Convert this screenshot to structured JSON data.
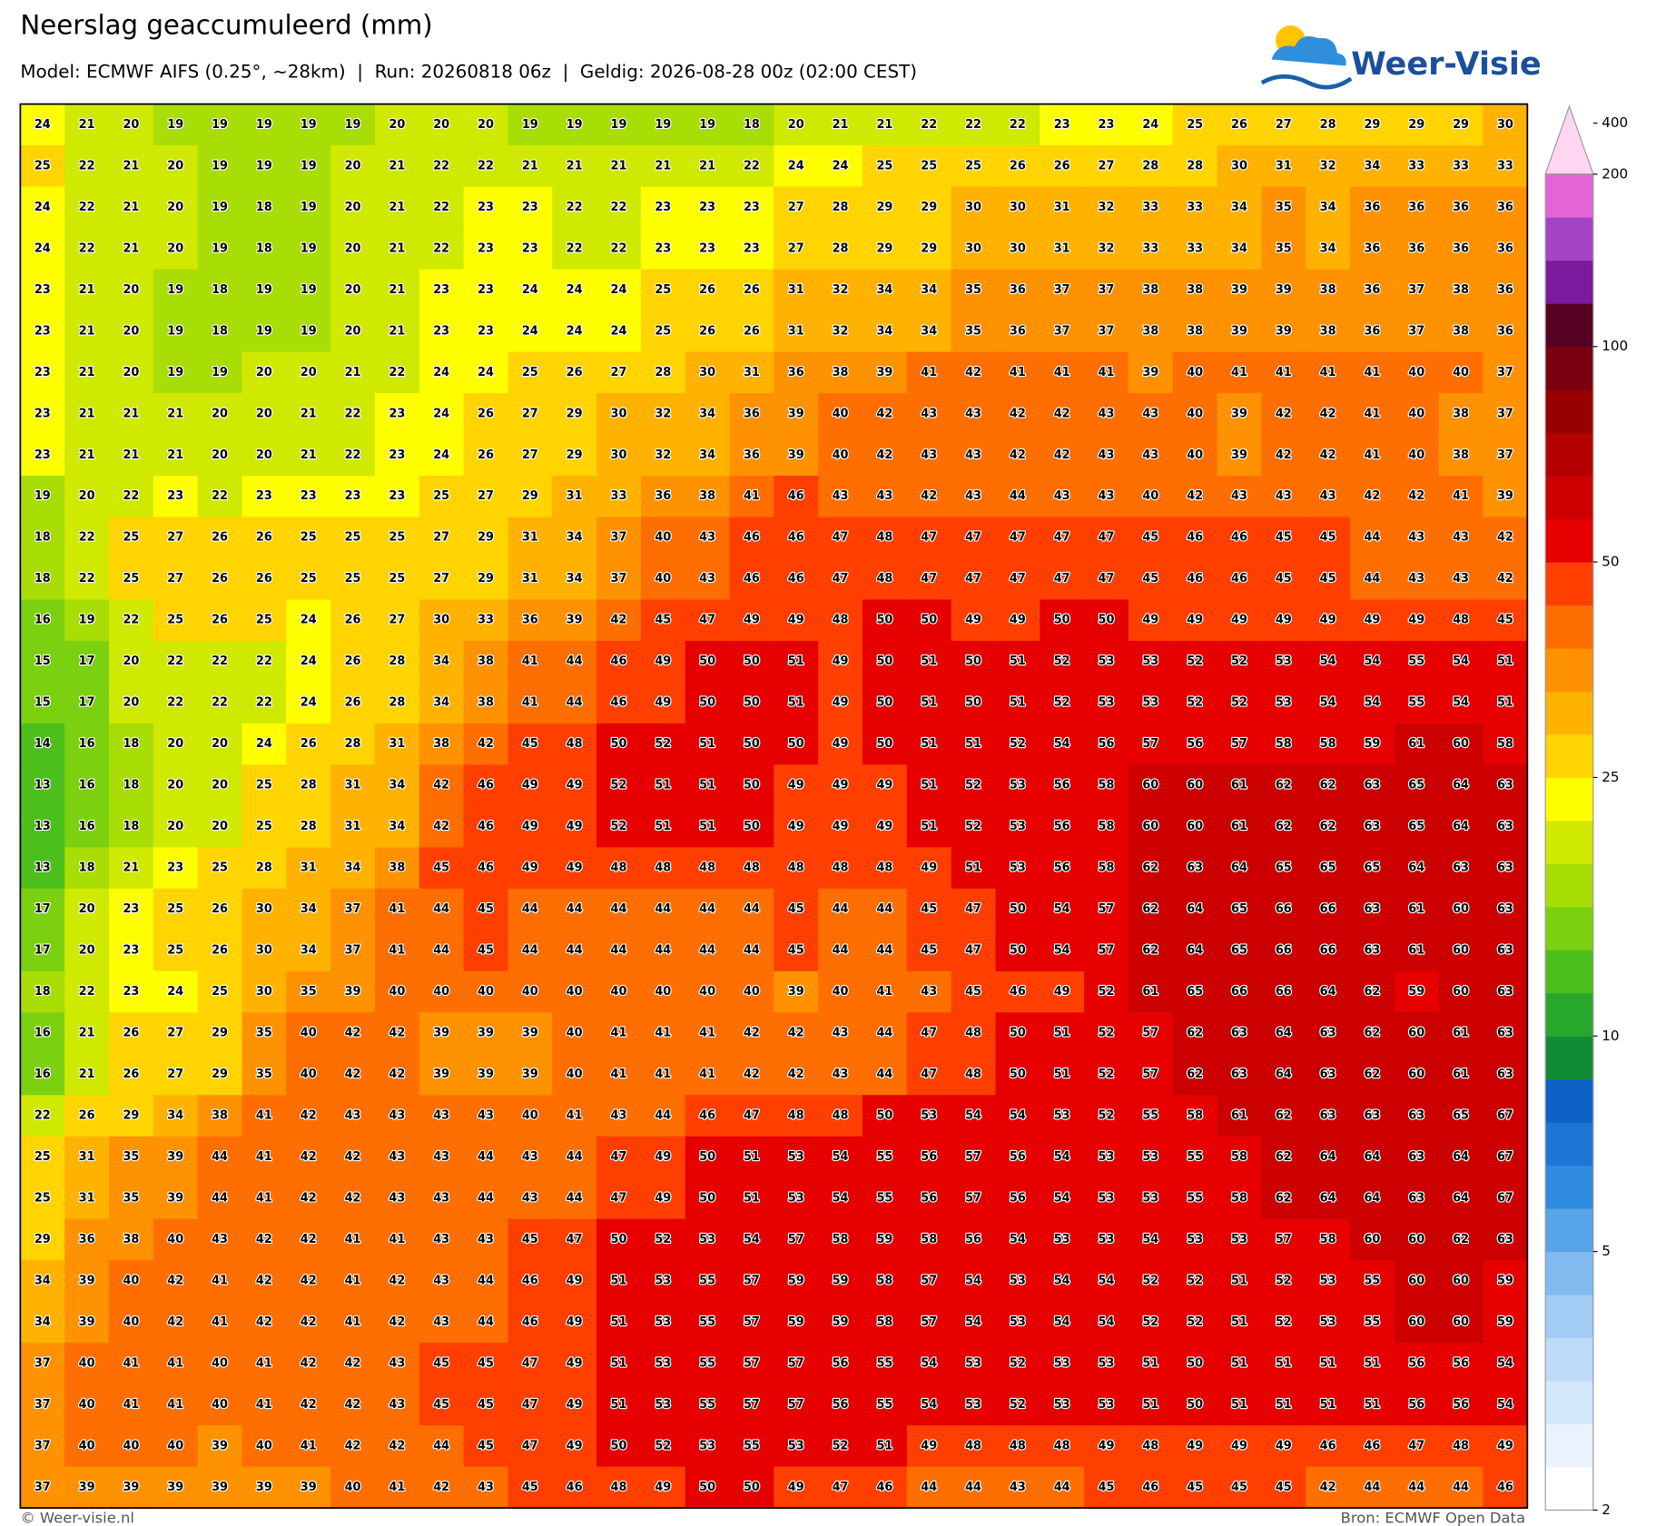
{
  "header": {
    "title": "Neerslag geaccumuleerd (mm)",
    "subtitle": "Model: ECMWF AIFS (0.25°, ~28km)  |  Run: 20260818 06z  |  Geldig: 2026-08-28 00z (02:00 CEST)"
  },
  "logo": "Weer-Visie",
  "map": {
    "values": [
      [
        24,
        21,
        20,
        19,
        19,
        19,
        19,
        19,
        20,
        20,
        20,
        19,
        19,
        19,
        19,
        19,
        18,
        20,
        21,
        21,
        22,
        22,
        22,
        23,
        23,
        24,
        25,
        26,
        27,
        28,
        29,
        29,
        29,
        30
      ],
      [
        25,
        22,
        21,
        20,
        19,
        19,
        19,
        20,
        21,
        22,
        22,
        21,
        21,
        21,
        21,
        21,
        22,
        24,
        24,
        25,
        25,
        25,
        26,
        26,
        27,
        28,
        28,
        30,
        31,
        32,
        34,
        33,
        33,
        33
      ],
      [
        24,
        22,
        21,
        20,
        19,
        18,
        19,
        20,
        21,
        22,
        23,
        23,
        22,
        22,
        23,
        23,
        23,
        27,
        28,
        29,
        29,
        30,
        30,
        31,
        32,
        33,
        33,
        34,
        35,
        34,
        36,
        36,
        36,
        36
      ],
      [
        24,
        22,
        21,
        20,
        19,
        18,
        19,
        20,
        21,
        22,
        23,
        23,
        22,
        22,
        23,
        23,
        23,
        27,
        28,
        29,
        29,
        30,
        30,
        31,
        32,
        33,
        33,
        34,
        35,
        34,
        36,
        36,
        36,
        36
      ],
      [
        23,
        21,
        20,
        19,
        18,
        19,
        19,
        20,
        21,
        23,
        23,
        24,
        24,
        24,
        25,
        26,
        26,
        31,
        32,
        34,
        34,
        35,
        36,
        37,
        37,
        38,
        38,
        39,
        39,
        38,
        36,
        37,
        38,
        36
      ],
      [
        23,
        21,
        20,
        19,
        18,
        19,
        19,
        20,
        21,
        23,
        23,
        24,
        24,
        24,
        25,
        26,
        26,
        31,
        32,
        34,
        34,
        35,
        36,
        37,
        37,
        38,
        38,
        39,
        39,
        38,
        36,
        37,
        38,
        36
      ],
      [
        23,
        21,
        20,
        19,
        19,
        20,
        20,
        21,
        22,
        24,
        24,
        25,
        26,
        27,
        28,
        30,
        31,
        36,
        38,
        39,
        41,
        42,
        41,
        41,
        41,
        39,
        40,
        41,
        41,
        41,
        41,
        40,
        40,
        37
      ],
      [
        23,
        21,
        21,
        21,
        20,
        20,
        21,
        22,
        23,
        24,
        26,
        27,
        29,
        30,
        32,
        34,
        36,
        39,
        40,
        42,
        43,
        43,
        42,
        42,
        43,
        43,
        40,
        39,
        42,
        42,
        41,
        40,
        38,
        37
      ],
      [
        23,
        21,
        21,
        21,
        20,
        20,
        21,
        22,
        23,
        24,
        26,
        27,
        29,
        30,
        32,
        34,
        36,
        39,
        40,
        42,
        43,
        43,
        42,
        42,
        43,
        43,
        40,
        39,
        42,
        42,
        41,
        40,
        38,
        37
      ],
      [
        19,
        20,
        22,
        23,
        22,
        23,
        23,
        23,
        23,
        25,
        27,
        29,
        31,
        33,
        36,
        38,
        41,
        46,
        43,
        43,
        42,
        43,
        44,
        43,
        43,
        40,
        42,
        43,
        43,
        43,
        42,
        42,
        41,
        39
      ],
      [
        18,
        22,
        25,
        27,
        26,
        26,
        25,
        25,
        25,
        27,
        29,
        31,
        34,
        37,
        40,
        43,
        46,
        46,
        47,
        48,
        47,
        47,
        47,
        47,
        47,
        45,
        46,
        46,
        45,
        45,
        44,
        43,
        43,
        42
      ],
      [
        18,
        22,
        25,
        27,
        26,
        26,
        25,
        25,
        25,
        27,
        29,
        31,
        34,
        37,
        40,
        43,
        46,
        46,
        47,
        48,
        47,
        47,
        47,
        47,
        47,
        45,
        46,
        46,
        45,
        45,
        44,
        43,
        43,
        42
      ],
      [
        16,
        19,
        22,
        25,
        26,
        25,
        24,
        26,
        27,
        30,
        33,
        36,
        39,
        42,
        45,
        47,
        49,
        49,
        48,
        50,
        50,
        49,
        49,
        50,
        50,
        49,
        49,
        49,
        49,
        49,
        49,
        49,
        48,
        45
      ],
      [
        15,
        17,
        20,
        22,
        22,
        22,
        24,
        26,
        28,
        34,
        38,
        41,
        44,
        46,
        49,
        50,
        50,
        51,
        49,
        50,
        51,
        50,
        51,
        52,
        53,
        53,
        52,
        52,
        53,
        54,
        54,
        55,
        54,
        51
      ],
      [
        15,
        17,
        20,
        22,
        22,
        22,
        24,
        26,
        28,
        34,
        38,
        41,
        44,
        46,
        49,
        50,
        50,
        51,
        49,
        50,
        51,
        50,
        51,
        52,
        53,
        53,
        52,
        52,
        53,
        54,
        54,
        55,
        54,
        51
      ],
      [
        14,
        16,
        18,
        20,
        20,
        24,
        26,
        28,
        31,
        38,
        42,
        45,
        48,
        50,
        52,
        51,
        50,
        50,
        49,
        50,
        51,
        51,
        52,
        54,
        56,
        57,
        56,
        57,
        58,
        58,
        59,
        61,
        60,
        58
      ],
      [
        13,
        16,
        18,
        20,
        20,
        25,
        28,
        31,
        34,
        42,
        46,
        49,
        49,
        52,
        51,
        51,
        50,
        49,
        49,
        49,
        51,
        52,
        53,
        56,
        58,
        60,
        60,
        61,
        62,
        62,
        63,
        65,
        64,
        63
      ],
      [
        13,
        16,
        18,
        20,
        20,
        25,
        28,
        31,
        34,
        42,
        46,
        49,
        49,
        52,
        51,
        51,
        50,
        49,
        49,
        49,
        51,
        52,
        53,
        56,
        58,
        60,
        60,
        61,
        62,
        62,
        63,
        65,
        64,
        63
      ],
      [
        13,
        18,
        21,
        23,
        25,
        28,
        31,
        34,
        38,
        45,
        46,
        49,
        49,
        48,
        48,
        48,
        48,
        48,
        48,
        48,
        49,
        51,
        53,
        56,
        58,
        62,
        63,
        64,
        65,
        65,
        65,
        64,
        63,
        63
      ],
      [
        17,
        20,
        23,
        25,
        26,
        30,
        34,
        37,
        41,
        44,
        45,
        44,
        44,
        44,
        44,
        44,
        44,
        45,
        44,
        44,
        45,
        47,
        50,
        54,
        57,
        62,
        64,
        65,
        66,
        66,
        63,
        61,
        60,
        63
      ],
      [
        17,
        20,
        23,
        25,
        26,
        30,
        34,
        37,
        41,
        44,
        45,
        44,
        44,
        44,
        44,
        44,
        44,
        45,
        44,
        44,
        45,
        47,
        50,
        54,
        57,
        62,
        64,
        65,
        66,
        66,
        63,
        61,
        60,
        63
      ],
      [
        18,
        22,
        23,
        24,
        25,
        30,
        35,
        39,
        40,
        40,
        40,
        40,
        40,
        40,
        40,
        40,
        40,
        39,
        40,
        41,
        43,
        45,
        46,
        49,
        52,
        61,
        65,
        66,
        66,
        64,
        62,
        59,
        60,
        63
      ],
      [
        16,
        21,
        26,
        27,
        29,
        35,
        40,
        42,
        42,
        39,
        39,
        39,
        40,
        41,
        41,
        41,
        42,
        42,
        43,
        44,
        47,
        48,
        50,
        51,
        52,
        57,
        62,
        63,
        64,
        63,
        62,
        60,
        61,
        63
      ],
      [
        16,
        21,
        26,
        27,
        29,
        35,
        40,
        42,
        42,
        39,
        39,
        39,
        40,
        41,
        41,
        41,
        42,
        42,
        43,
        44,
        47,
        48,
        50,
        51,
        52,
        57,
        62,
        63,
        64,
        63,
        62,
        60,
        61,
        63
      ],
      [
        22,
        26,
        29,
        34,
        38,
        41,
        42,
        43,
        43,
        43,
        43,
        40,
        41,
        43,
        44,
        46,
        47,
        48,
        48,
        50,
        53,
        54,
        54,
        53,
        52,
        55,
        58,
        61,
        62,
        63,
        63,
        63,
        65,
        67
      ],
      [
        25,
        31,
        35,
        39,
        44,
        41,
        42,
        42,
        43,
        43,
        44,
        43,
        44,
        47,
        49,
        50,
        51,
        53,
        54,
        55,
        56,
        57,
        56,
        54,
        53,
        53,
        55,
        58,
        62,
        64,
        64,
        63,
        64,
        67
      ],
      [
        25,
        31,
        35,
        39,
        44,
        41,
        42,
        42,
        43,
        43,
        44,
        43,
        44,
        47,
        49,
        50,
        51,
        53,
        54,
        55,
        56,
        57,
        56,
        54,
        53,
        53,
        55,
        58,
        62,
        64,
        64,
        63,
        64,
        67
      ],
      [
        29,
        36,
        38,
        40,
        43,
        42,
        42,
        41,
        41,
        43,
        43,
        45,
        47,
        50,
        52,
        53,
        54,
        57,
        58,
        59,
        58,
        56,
        54,
        53,
        53,
        54,
        53,
        53,
        57,
        58,
        60,
        60,
        62,
        63
      ],
      [
        34,
        39,
        40,
        42,
        41,
        42,
        42,
        41,
        42,
        43,
        44,
        46,
        49,
        51,
        53,
        55,
        57,
        59,
        59,
        58,
        57,
        54,
        53,
        54,
        54,
        52,
        52,
        51,
        52,
        53,
        55,
        60,
        60,
        59
      ],
      [
        34,
        39,
        40,
        42,
        41,
        42,
        42,
        41,
        42,
        43,
        44,
        46,
        49,
        51,
        53,
        55,
        57,
        59,
        59,
        58,
        57,
        54,
        53,
        54,
        54,
        52,
        52,
        51,
        52,
        53,
        55,
        60,
        60,
        59
      ],
      [
        37,
        40,
        41,
        41,
        40,
        41,
        42,
        42,
        43,
        45,
        45,
        47,
        49,
        51,
        53,
        55,
        57,
        57,
        56,
        55,
        54,
        53,
        52,
        53,
        53,
        51,
        50,
        51,
        51,
        51,
        51,
        56,
        56,
        54
      ],
      [
        37,
        40,
        41,
        41,
        40,
        41,
        42,
        42,
        43,
        45,
        45,
        47,
        49,
        51,
        53,
        55,
        57,
        57,
        56,
        55,
        54,
        53,
        52,
        53,
        53,
        51,
        50,
        51,
        51,
        51,
        51,
        56,
        56,
        54
      ],
      [
        37,
        40,
        40,
        40,
        39,
        40,
        41,
        42,
        42,
        44,
        45,
        47,
        49,
        50,
        52,
        53,
        55,
        53,
        52,
        51,
        49,
        48,
        48,
        48,
        49,
        48,
        49,
        49,
        49,
        46,
        46,
        47,
        48,
        49
      ],
      [
        37,
        39,
        39,
        39,
        39,
        39,
        39,
        40,
        41,
        42,
        43,
        45,
        46,
        48,
        49,
        50,
        50,
        49,
        47,
        46,
        44,
        44,
        43,
        44,
        45,
        46,
        45,
        45,
        45,
        42,
        44,
        44,
        44,
        46
      ]
    ]
  },
  "colorbar": {
    "ticks": [
      2,
      5,
      10,
      25,
      50,
      100,
      200,
      400
    ],
    "levels": [
      2,
      2.5,
      3,
      3.5,
      4,
      4.5,
      5,
      6,
      7,
      8,
      9,
      10,
      12.5,
      15,
      17.5,
      20,
      22.5,
      25,
      30,
      35,
      40,
      45,
      50,
      60,
      70,
      80,
      90,
      100,
      125,
      150,
      175,
      200
    ],
    "colors": [
      "#ffffff",
      "#eaf3fd",
      "#d3e7fb",
      "#bddbf8",
      "#a2ccf4",
      "#80baef",
      "#57a4e9",
      "#2f8ce0",
      "#1d76d6",
      "#0e62c6",
      "#128c34",
      "#27a82c",
      "#4dbf1d",
      "#7bd10f",
      "#a8dd05",
      "#cfe900",
      "#ffff00",
      "#ffd400",
      "#ffb300",
      "#ff9200",
      "#ff6e00",
      "#ff3f00",
      "#e60000",
      "#cc0000",
      "#b30000",
      "#990000",
      "#7a0012",
      "#560022",
      "#7a1a9c",
      "#a444c4",
      "#e464d6"
    ],
    "over_color": "#ffd6f2"
  },
  "footer": {
    "left": "© Weer-visie.nl",
    "right": "Bron: ECMWF Open Data"
  }
}
